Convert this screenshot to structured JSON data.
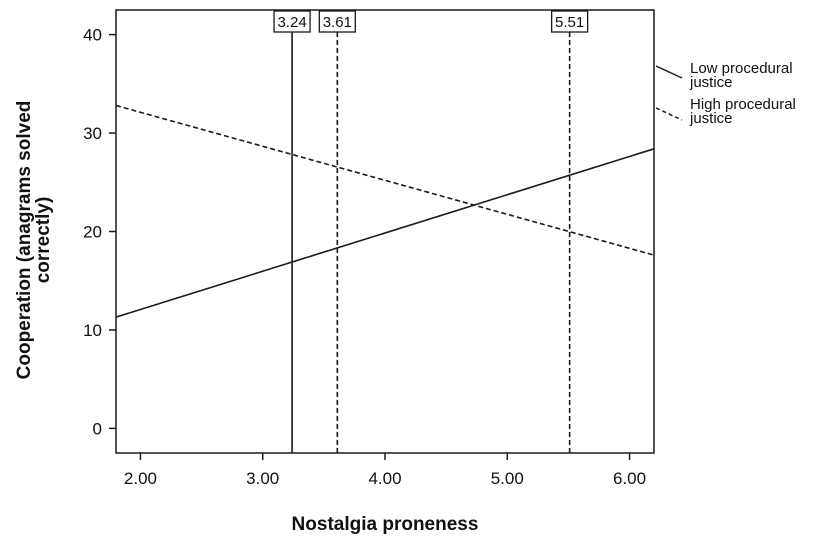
{
  "chart_data": {
    "type": "line",
    "xlabel": "Nostalgia proneness",
    "ylabel": "Cooperation (anagrams solved correctly)",
    "ylabel_lines": [
      "Cooperation (anagrams solved",
      "correctly)"
    ],
    "xlim": [
      1.8,
      6.2
    ],
    "ylim": [
      -2.5,
      42.5
    ],
    "xticks": [
      2.0,
      3.0,
      4.0,
      5.0,
      6.0
    ],
    "xtick_labels": [
      "2.00",
      "3.00",
      "4.00",
      "5.00",
      "6.00"
    ],
    "yticks": [
      0,
      10,
      20,
      30,
      40
    ],
    "ytick_labels": [
      "0",
      "10",
      "20",
      "30",
      "40"
    ],
    "grid": false,
    "legend_position": "right",
    "series": [
      {
        "name": "Low procedural justice",
        "name_lines": [
          "Low procedural",
          "justice"
        ],
        "style": "solid",
        "x": [
          1.8,
          6.2
        ],
        "y": [
          11.3,
          28.4
        ]
      },
      {
        "name": "High procedural justice",
        "name_lines": [
          "High procedural",
          "justice"
        ],
        "style": "dashed",
        "x": [
          1.8,
          6.2
        ],
        "y": [
          32.8,
          17.6
        ]
      }
    ],
    "reference_lines": [
      {
        "x": 3.24,
        "label": "3.24",
        "style": "solid"
      },
      {
        "x": 3.61,
        "label": "3.61",
        "style": "dashed"
      },
      {
        "x": 5.51,
        "label": "5.51",
        "style": "dashed"
      }
    ]
  },
  "colors": {
    "line": "#1a1a1a",
    "background": "#ffffff"
  }
}
